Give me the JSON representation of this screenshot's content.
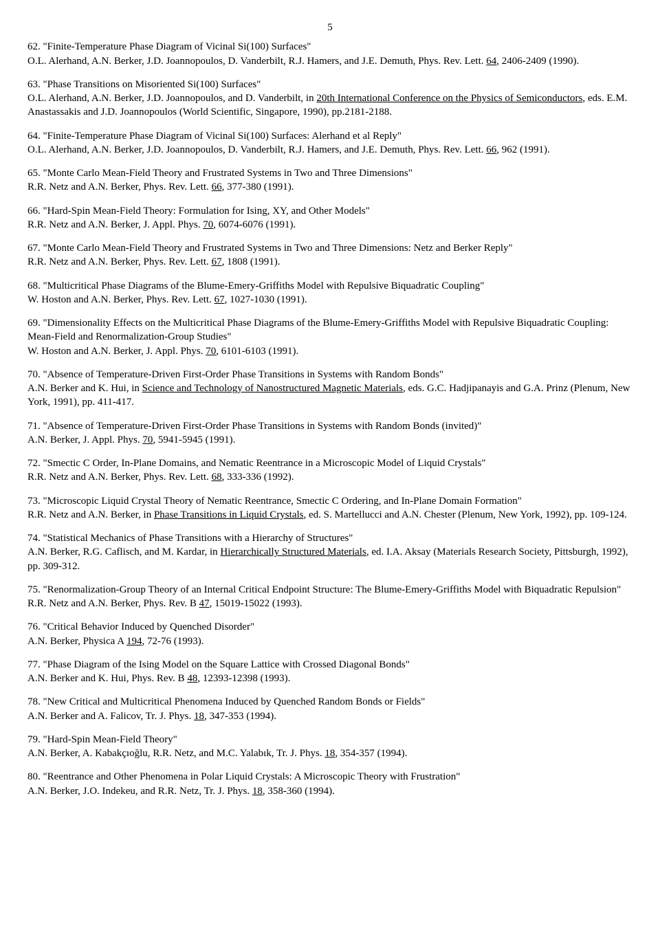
{
  "page_number": "5",
  "refs": [
    {
      "num": "62.",
      "title": "\"Finite-Temperature Phase Diagram of Vicinal Si(100) Surfaces\"",
      "authors_pre": "O.L. Alerhand, A.N. Berker, J.D. Joannopoulos, D. Vanderbilt, R.J. Hamers, and J.E. Demuth, Phys. Rev. Lett. ",
      "underlined": "64",
      "authors_post": ", 2406-2409 (1990)."
    },
    {
      "num": "63.",
      "title": "\"Phase Transitions on Misoriented Si(100) Surfaces\"",
      "authors_pre": "O.L. Alerhand, A.N. Berker, J.D. Joannopoulos, and D. Vanderbilt, in ",
      "underlined": "20th International Conference on the Physics of Semiconductors",
      "authors_post": ", eds. E.M. Anastassakis and J.D. Joannopoulos (World Scientific, Singapore, 1990), pp.2181-2188."
    },
    {
      "num": "64.",
      "title": "\"Finite-Temperature Phase Diagram of Vicinal Si(100) Surfaces: Alerhand et al Reply\"",
      "authors_pre": "O.L. Alerhand, A.N. Berker, J.D. Joannopoulos, D. Vanderbilt, R.J. Hamers, and J.E. Demuth, Phys. Rev. Lett. ",
      "underlined": "66",
      "authors_post": ", 962 (1991)."
    },
    {
      "num": "65.",
      "title": "\"Monte Carlo Mean-Field Theory and Frustrated Systems in Two and Three Dimensions\"",
      "authors_pre": "R.R. Netz and A.N. Berker, Phys. Rev. Lett. ",
      "underlined": "66",
      "authors_post": ", 377-380 (1991)."
    },
    {
      "num": "66.",
      "title": "\"Hard-Spin Mean-Field Theory:  Formulation for Ising, XY, and Other Models\"",
      "authors_pre": "R.R. Netz and A.N. Berker, J. Appl. Phys. ",
      "underlined": "70",
      "authors_post": ", 6074-6076 (1991)."
    },
    {
      "num": "67.",
      "title": "\"Monte Carlo Mean-Field Theory and Frustrated Systems in Two and Three Dimensions: Netz and Berker Reply\"",
      "authors_pre": "R.R. Netz and A.N. Berker, Phys. Rev. Lett. ",
      "underlined": "67",
      "authors_post": ", 1808 (1991)."
    },
    {
      "num": "68.",
      "title": "\"Multicritical Phase Diagrams of the Blume-Emery-Griffiths Model with Repulsive Biquadratic Coupling\"",
      "authors_pre": "W. Hoston and A.N. Berker, Phys. Rev. Lett. ",
      "underlined": "67",
      "authors_post": ", 1027-1030 (1991)."
    },
    {
      "num": "69.",
      "title": "\"Dimensionality Effects on the Multicritical Phase Diagrams of the Blume-Emery-Griffiths Model with Repulsive Biquadratic Coupling: Mean-Field and Renormalization-Group Studies\"",
      "authors_pre": "W. Hoston and A.N. Berker, J. Appl. Phys. ",
      "underlined": "70",
      "authors_post": ", 6101-6103 (1991)."
    },
    {
      "num": "70.",
      "title": "\"Absence of Temperature-Driven First-Order Phase Transitions in Systems with Random Bonds\"",
      "authors_pre": "A.N. Berker and K. Hui, in ",
      "underlined": "Science and Technology of Nanostructured Magnetic Materials",
      "authors_post": ", eds. G.C. Hadjipanayis and G.A. Prinz (Plenum, New York, 1991), pp. 411-417."
    },
    {
      "num": "71.",
      "title": "\"Absence of Temperature-Driven First-Order Phase Transitions in Systems with Random Bonds (invited)\"",
      "authors_pre": "A.N. Berker, J. Appl. Phys. ",
      "underlined": "70",
      "authors_post": ", 5941-5945 (1991)."
    },
    {
      "num": "72.",
      "title": "\"Smectic C Order, In-Plane Domains, and Nematic Reentrance in a Microscopic Model of Liquid Crystals\"",
      "authors_pre": "R.R. Netz and A.N. Berker, Phys. Rev. Lett. ",
      "underlined": "68",
      "authors_post": ", 333-336 (1992)."
    },
    {
      "num": "73.",
      "title": "\"Microscopic Liquid Crystal Theory of Nematic Reentrance, Smectic C Ordering, and In-Plane Domain Formation\"",
      "authors_pre": "R.R. Netz and A.N. Berker, in ",
      "underlined": "Phase Transitions in Liquid Crystals",
      "authors_post": ", ed. S. Martellucci and A.N. Chester (Plenum, New York, 1992), pp. 109-124."
    },
    {
      "num": "74.",
      "title": "\"Statistical Mechanics of Phase Transitions with a Hierarchy of Structures\"",
      "authors_pre": "A.N. Berker, R.G. Caflisch, and M. Kardar, in ",
      "underlined": "Hierarchically Structured Materials",
      "authors_post": ", ed. I.A. Aksay (Materials Research Society, Pittsburgh, 1992), pp. 309-312."
    },
    {
      "num": "75.",
      "title": "\"Renormalization-Group Theory of an Internal Critical Endpoint Structure: The Blume-Emery-Griffiths Model with Biquadratic Repulsion\"",
      "authors_pre": "R.R. Netz and A.N. Berker, Phys. Rev. B ",
      "underlined": "47",
      "authors_post": ", 15019-15022 (1993)."
    },
    {
      "num": "76.",
      "title": "\"Critical Behavior Induced by Quenched Disorder\"",
      "authors_pre": "A.N. Berker, Physica A ",
      "underlined": "194",
      "authors_post": ", 72-76 (1993)."
    },
    {
      "num": "77.",
      "title": "\"Phase Diagram of the Ising Model on the Square Lattice with Crossed Diagonal Bonds\"",
      "authors_pre": "A.N. Berker and K. Hui, Phys. Rev. B ",
      "underlined": "48",
      "authors_post": ", 12393-12398 (1993)."
    },
    {
      "num": "78.",
      "title": "\"New Critical and Multicritical Phenomena Induced by Quenched Random Bonds or Fields\"",
      "authors_pre": "A.N. Berker and A. Falicov, Tr. J. Phys. ",
      "underlined": "18",
      "authors_post": ", 347-353 (1994)."
    },
    {
      "num": "79.",
      "title": "\"Hard-Spin Mean-Field Theory\"",
      "authors_pre": "A.N. Berker, A. Kabakçıoğlu, R.R. Netz, and M.C. Yalabık, Tr. J. Phys. ",
      "underlined": "18",
      "authors_post": ", 354-357 (1994)."
    },
    {
      "num": "80.",
      "title": "\"Reentrance and Other Phenomena in Polar Liquid Crystals: A Microscopic Theory with Frustration\"",
      "authors_pre": "A.N. Berker, J.O. Indekeu, and R.R. Netz, Tr. J. Phys. ",
      "underlined": "18",
      "authors_post": ", 358-360 (1994)."
    }
  ]
}
